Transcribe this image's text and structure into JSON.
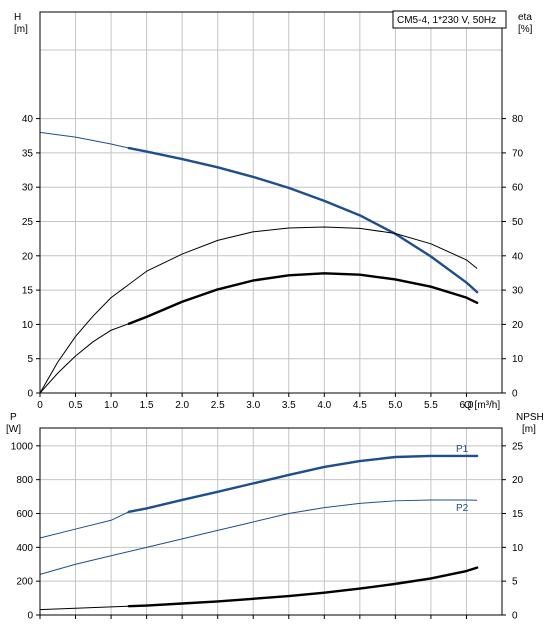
{
  "chart_data": [
    {
      "type": "line",
      "legend_box": "CM5-4, 1*230 V, 50Hz",
      "y_left_label": {
        "name": "H",
        "unit": "[m]"
      },
      "y_right_label": {
        "name": "eta",
        "unit": "[%]"
      },
      "x_label": "Q [m³/h]",
      "xlim": [
        0,
        6.5
      ],
      "ylim": [
        0,
        50
      ],
      "y2lim": [
        0,
        100
      ],
      "x_ticks": [
        "0",
        "0.5",
        "1.0",
        "1.5",
        "2.0",
        "2.5",
        "3.0",
        "3.5",
        "4.0",
        "4.5",
        "5.0",
        "5.5",
        "6.0"
      ],
      "y_ticks": [
        "0",
        "5",
        "10",
        "15",
        "20",
        "25",
        "30",
        "35",
        "40"
      ],
      "y2_ticks": [
        "0",
        "10",
        "20",
        "30",
        "40",
        "50",
        "60",
        "70",
        "80"
      ],
      "grid": true,
      "series": [
        {
          "id": "H",
          "axis": "left",
          "color": "#1f4e8c",
          "x": [
            0,
            0.5,
            1.0,
            1.25,
            1.5,
            2.0,
            2.5,
            3.0,
            3.5,
            4.0,
            4.5,
            5.0,
            5.5,
            6.0,
            6.15
          ],
          "y": [
            38.0,
            37.3,
            36.3,
            35.7,
            35.2,
            34.1,
            32.9,
            31.5,
            29.9,
            28.0,
            25.9,
            23.2,
            19.9,
            16.1,
            14.7
          ],
          "thick_from": 1.25
        },
        {
          "id": "eta",
          "axis": "right",
          "color": "#000000",
          "x": [
            0,
            0.25,
            0.5,
            0.75,
            1.0,
            1.5,
            2.0,
            2.5,
            3.0,
            3.5,
            4.0,
            4.5,
            5.0,
            5.5,
            6.0,
            6.15
          ],
          "y": [
            0,
            9.0,
            16.5,
            22.5,
            27.8,
            35.5,
            40.5,
            44.5,
            47.0,
            48.1,
            48.4,
            48.0,
            46.5,
            43.5,
            38.8,
            36.3
          ],
          "thick_from": null
        },
        {
          "id": "eta2",
          "axis": "right",
          "color": "#000000",
          "x": [
            0,
            0.25,
            0.5,
            0.75,
            1.0,
            1.25,
            1.5,
            2.0,
            2.5,
            3.0,
            3.5,
            4.0,
            4.5,
            5.0,
            5.5,
            6.0,
            6.15
          ],
          "y": [
            0,
            5.8,
            10.8,
            15.0,
            18.3,
            20.2,
            22.2,
            26.6,
            30.2,
            32.8,
            34.3,
            34.9,
            34.5,
            33.1,
            31.0,
            27.8,
            26.3
          ],
          "thick_from": 1.25
        }
      ]
    },
    {
      "type": "line",
      "y_left_label": {
        "name": "P",
        "unit": "[W]"
      },
      "y_right_label": {
        "name": "NPSH",
        "unit": "[m]"
      },
      "xlim": [
        0,
        6.5
      ],
      "ylim": [
        0,
        1200
      ],
      "y2lim": [
        0,
        30
      ],
      "y_ticks": [
        "0",
        "200",
        "400",
        "600",
        "800",
        "1000"
      ],
      "y2_ticks": [
        "0",
        "5",
        "10",
        "15",
        "20",
        "25"
      ],
      "grid": true,
      "series": [
        {
          "id": "P1",
          "name": "P1",
          "axis": "left",
          "color": "#1f4e8c",
          "x": [
            0,
            0.5,
            1.0,
            1.25,
            1.5,
            2.0,
            2.5,
            3.0,
            3.5,
            4.0,
            4.5,
            5.0,
            5.5,
            6.0,
            6.15
          ],
          "y": [
            455,
            508,
            560,
            610,
            630,
            680,
            728,
            778,
            828,
            875,
            910,
            934,
            940,
            940,
            940
          ],
          "thick_from": 1.25
        },
        {
          "id": "P2",
          "name": "P2",
          "axis": "left",
          "color": "#1f4e8c",
          "x": [
            0,
            0.5,
            1.0,
            1.5,
            2.0,
            2.5,
            3.0,
            3.5,
            4.0,
            4.5,
            5.0,
            5.5,
            6.0,
            6.15
          ],
          "y": [
            240,
            300,
            350,
            400,
            450,
            500,
            550,
            600,
            635,
            660,
            675,
            680,
            680,
            678
          ],
          "thick_from": null
        },
        {
          "id": "NPSH",
          "axis": "right",
          "color": "#000000",
          "x": [
            0,
            0.5,
            1.0,
            1.25,
            1.5,
            2.0,
            2.5,
            3.0,
            3.5,
            4.0,
            4.5,
            5.0,
            5.5,
            6.0,
            6.15
          ],
          "y": [
            0.8,
            1.0,
            1.2,
            1.3,
            1.4,
            1.7,
            2.0,
            2.4,
            2.8,
            3.3,
            3.9,
            4.6,
            5.4,
            6.5,
            7.0
          ],
          "thick_from": 1.25
        }
      ]
    }
  ]
}
